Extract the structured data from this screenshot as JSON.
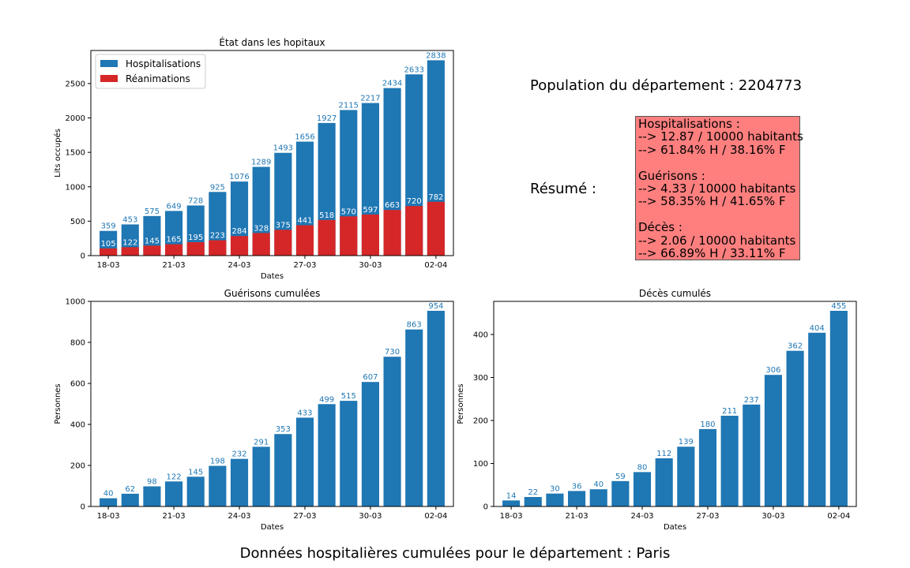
{
  "colors": {
    "blue": "#1f77b4",
    "red": "#d62728",
    "summary_bg": "#ff7f7f"
  },
  "population": {
    "text": "Population du département : 2204773"
  },
  "summary": {
    "label": "Résumé :",
    "hosp_title": "Hospitalisations :",
    "hosp_rate": "--> 12.87 / 10000 habitants",
    "hosp_split": "--> 61.84% H / 38.16% F",
    "guer_title": "Guérisons :",
    "guer_rate": "--> 4.33 / 10000 habitants",
    "guer_split": "--> 58.35% H / 41.65% F",
    "deces_title": "Décès :",
    "deces_rate": "--> 2.06 / 10000 habitants",
    "deces_split": "--> 66.89% H / 33.11% F"
  },
  "suptitle": "Données hospitalières cumulées pour le département : Paris",
  "chart_data": [
    {
      "id": "hopitaux",
      "type": "bar",
      "title": "État dans les hopitaux",
      "xlabel": "Dates",
      "ylabel": "Lits occupés",
      "ylim": [
        0,
        2980
      ],
      "yticks": [
        0,
        500,
        1000,
        1500,
        2000,
        2500
      ],
      "xticks": [
        {
          "index": 0,
          "label": "18-03"
        },
        {
          "index": 3,
          "label": "21-03"
        },
        {
          "index": 6,
          "label": "24-03"
        },
        {
          "index": 9,
          "label": "27-03"
        },
        {
          "index": 12,
          "label": "30-03"
        },
        {
          "index": 15,
          "label": "02-04"
        }
      ],
      "legend": "top-left",
      "series": [
        {
          "name": "Hospitalisations",
          "color": "#1f77b4",
          "values": [
            359,
            453,
            575,
            649,
            728,
            925,
            1076,
            1289,
            1493,
            1656,
            1927,
            2115,
            2217,
            2434,
            2633,
            2838
          ]
        },
        {
          "name": "Réanimations",
          "color": "#d62728",
          "values": [
            105,
            122,
            145,
            165,
            195,
            223,
            284,
            328,
            375,
            441,
            518,
            570,
            597,
            663,
            720,
            782
          ]
        }
      ]
    },
    {
      "id": "guerisons",
      "type": "bar",
      "title": "Guérisons cumulées",
      "xlabel": "Dates",
      "ylabel": "Personnes",
      "ylim": [
        0,
        1000
      ],
      "yticks": [
        0,
        200,
        400,
        600,
        800,
        1000
      ],
      "xticks": [
        {
          "index": 0,
          "label": "18-03"
        },
        {
          "index": 3,
          "label": "21-03"
        },
        {
          "index": 6,
          "label": "24-03"
        },
        {
          "index": 9,
          "label": "27-03"
        },
        {
          "index": 12,
          "label": "30-03"
        },
        {
          "index": 15,
          "label": "02-04"
        }
      ],
      "series": [
        {
          "color": "#1f77b4",
          "values": [
            40,
            62,
            98,
            122,
            145,
            198,
            232,
            291,
            353,
            433,
            499,
            515,
            607,
            730,
            863,
            954
          ]
        }
      ]
    },
    {
      "id": "deces",
      "type": "bar",
      "title": "Décès cumulés",
      "xlabel": "Dates",
      "ylabel": "Personnes",
      "ylim": [
        0,
        477
      ],
      "yticks": [
        0,
        100,
        200,
        300,
        400
      ],
      "xticks": [
        {
          "index": 0,
          "label": "18-03"
        },
        {
          "index": 3,
          "label": "21-03"
        },
        {
          "index": 6,
          "label": "24-03"
        },
        {
          "index": 9,
          "label": "27-03"
        },
        {
          "index": 12,
          "label": "30-03"
        },
        {
          "index": 15,
          "label": "02-04"
        }
      ],
      "series": [
        {
          "color": "#1f77b4",
          "values": [
            14,
            22,
            30,
            36,
            40,
            59,
            80,
            112,
            139,
            180,
            211,
            237,
            306,
            362,
            404,
            455
          ]
        }
      ]
    }
  ]
}
